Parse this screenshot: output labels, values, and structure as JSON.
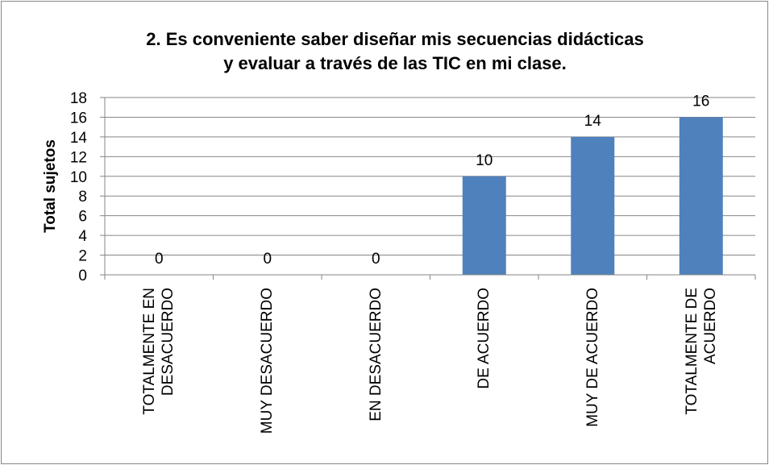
{
  "chart_data": {
    "type": "bar",
    "title": "2. Es conveniente saber diseñar mis secuencias didácticas",
    "subtitle": "y evaluar  a través de las TIC en mi clase.",
    "y_label": "Total sujetos",
    "categories": [
      "TOTALMENTE EN DESACUERDO",
      "MUY DESACUERDO",
      "EN DESACUERDO",
      "DE ACUERDO",
      "MUY DE ACUERDO",
      "TOTALMENTE DE ACUERDO"
    ],
    "values": [
      0,
      0,
      0,
      10,
      14,
      16
    ],
    "color": "#4f81bd",
    "ylim": [
      0,
      18
    ],
    "yticks": [
      0,
      2,
      4,
      6,
      8,
      10,
      12,
      14,
      16,
      18
    ],
    "grid": true
  }
}
